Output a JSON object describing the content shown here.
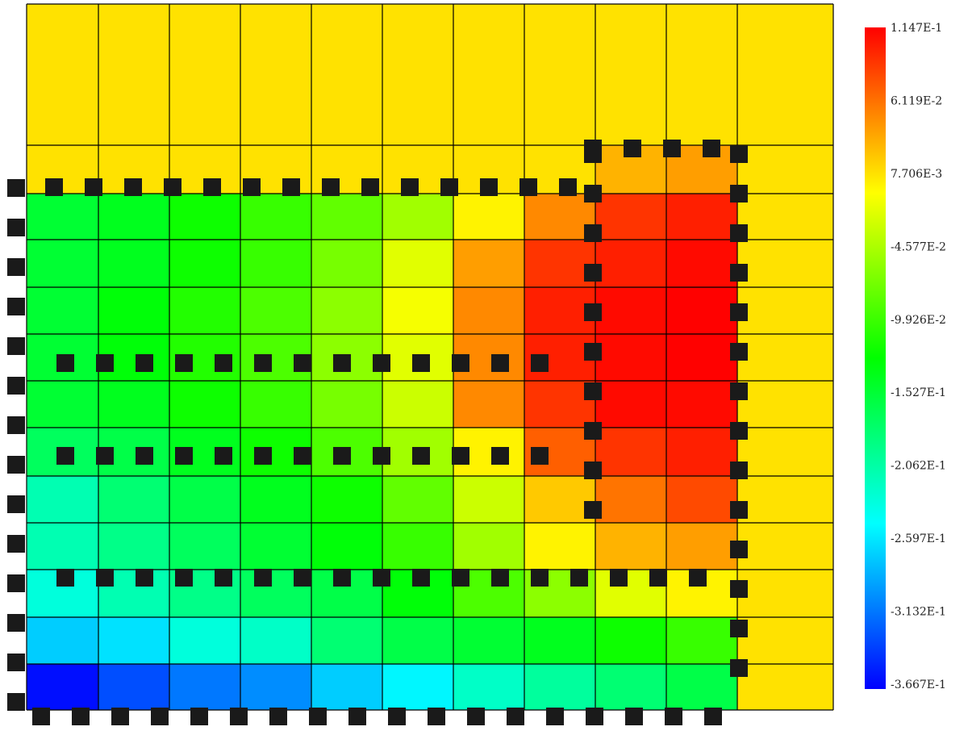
{
  "chart_data": {
    "type": "heatmap",
    "title": "",
    "xlabel": "",
    "ylabel": "",
    "grid": true,
    "legend": "right",
    "colormap": [
      "#0000ff",
      "#00ffff",
      "#00ff00",
      "#ffff00",
      "#ff0000"
    ],
    "grid_line_color": "#000000",
    "overlay_color": "#1a1a1a",
    "colorbar": {
      "min": -0.3667,
      "max": 0.1147,
      "tick_labels": [
        "1.147E-1",
        "6.119E-2",
        "7.706E-3",
        "-4.577E-2",
        "-9.926E-2",
        "-1.527E-1",
        "-2.062E-1",
        "-2.597E-1",
        "-3.132E-1",
        "-3.667E-1"
      ]
    },
    "values": [
      [
        0.008,
        0.008,
        0.008,
        0.008,
        0.008,
        0.008,
        0.008,
        0.008,
        0.008,
        0.008,
        0.008
      ],
      [
        0.008,
        0.008,
        0.008,
        0.008,
        0.008,
        0.008,
        0.008,
        0.008,
        0.03,
        0.04,
        0.008
      ],
      [
        -0.15,
        -0.14,
        -0.12,
        -0.1,
        -0.08,
        -0.05,
        0.0,
        0.05,
        0.09,
        0.1,
        0.008
      ],
      [
        -0.15,
        -0.14,
        -0.12,
        -0.1,
        -0.07,
        -0.02,
        0.04,
        0.09,
        0.1,
        0.11,
        0.008
      ],
      [
        -0.15,
        -0.13,
        -0.11,
        -0.09,
        -0.06,
        -0.01,
        0.05,
        0.1,
        0.11,
        0.114,
        0.008
      ],
      [
        -0.15,
        -0.13,
        -0.11,
        -0.09,
        -0.06,
        -0.02,
        0.05,
        0.1,
        0.11,
        0.114,
        0.008
      ],
      [
        -0.15,
        -0.14,
        -0.12,
        -0.1,
        -0.07,
        -0.03,
        0.05,
        0.09,
        0.11,
        0.11,
        0.008
      ],
      [
        -0.17,
        -0.16,
        -0.14,
        -0.12,
        -0.09,
        -0.05,
        0.0,
        0.07,
        0.09,
        0.1,
        0.008
      ],
      [
        -0.21,
        -0.18,
        -0.16,
        -0.14,
        -0.12,
        -0.08,
        -0.03,
        0.02,
        0.06,
        0.08,
        0.008
      ],
      [
        -0.21,
        -0.19,
        -0.17,
        -0.15,
        -0.13,
        -0.1,
        -0.05,
        0.0,
        0.03,
        0.04,
        0.008
      ],
      [
        -0.23,
        -0.21,
        -0.19,
        -0.17,
        -0.16,
        -0.13,
        -0.09,
        -0.06,
        -0.02,
        0.0,
        0.008
      ],
      [
        -0.27,
        -0.26,
        -0.23,
        -0.22,
        -0.18,
        -0.16,
        -0.15,
        -0.14,
        -0.12,
        -0.1,
        0.008
      ],
      [
        -0.36,
        -0.33,
        -0.31,
        -0.3,
        -0.27,
        -0.25,
        -0.22,
        -0.2,
        -0.18,
        -0.16,
        0.008
      ]
    ]
  }
}
